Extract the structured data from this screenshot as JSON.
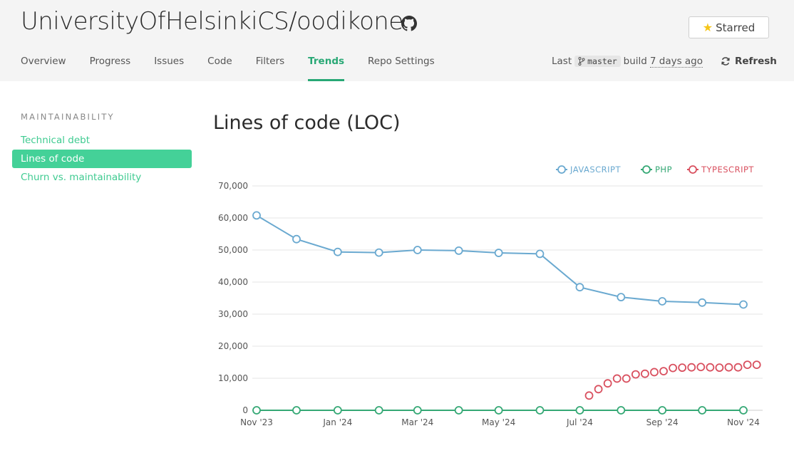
{
  "header": {
    "repo_title": "UniversityOfHelsinkiCS/oodikone",
    "github_icon": "github-icon",
    "star_button": {
      "label": "Starred",
      "icon": "star-icon"
    }
  },
  "nav": {
    "tabs": [
      {
        "label": "Overview"
      },
      {
        "label": "Progress"
      },
      {
        "label": "Issues"
      },
      {
        "label": "Code"
      },
      {
        "label": "Filters"
      },
      {
        "label": "Trends",
        "active": true
      },
      {
        "label": "Repo Settings"
      }
    ]
  },
  "build_info": {
    "prefix": "Last",
    "branch": "master",
    "middle": "build",
    "ago": "7 days ago",
    "branch_icon": "git-branch-icon"
  },
  "refresh": {
    "label": "Refresh",
    "icon": "refresh-icon"
  },
  "sidebar": {
    "heading": "MAINTAINABILITY",
    "items": [
      {
        "label": "Technical debt"
      },
      {
        "label": "Lines of code",
        "active": true
      },
      {
        "label": "Churn vs. maintainability"
      }
    ]
  },
  "main": {
    "title": "Lines of code (LOC)"
  },
  "colors": {
    "accent": "#28a875",
    "javascript": "#6aa9d0",
    "php": "#35a875",
    "typescript": "#d9505f"
  },
  "chart_data": {
    "type": "line",
    "title": "",
    "xlabel": "",
    "ylabel": "",
    "ylim": [
      0,
      70000
    ],
    "yticks": [
      "0",
      "10,000",
      "20,000",
      "30,000",
      "40,000",
      "50,000",
      "60,000",
      "70,000"
    ],
    "xticks": [
      {
        "label": "Nov '23",
        "date": "2023-11-01"
      },
      {
        "label": "Jan '24",
        "date": "2024-01-01"
      },
      {
        "label": "Mar '24",
        "date": "2024-03-01"
      },
      {
        "label": "May '24",
        "date": "2024-05-01"
      },
      {
        "label": "Jul '24",
        "date": "2024-07-01"
      },
      {
        "label": "Sep '24",
        "date": "2024-09-01"
      },
      {
        "label": "Nov '24",
        "date": "2024-11-01"
      }
    ],
    "legend_position": "top-right",
    "grid": true,
    "series": [
      {
        "name": "JAVASCRIPT",
        "color": "#6aa9d0",
        "points": [
          {
            "x": "2023-11-01",
            "y": 60800
          },
          {
            "x": "2023-12-01",
            "y": 53400
          },
          {
            "x": "2024-01-01",
            "y": 49400
          },
          {
            "x": "2024-02-01",
            "y": 49200
          },
          {
            "x": "2024-03-01",
            "y": 50000
          },
          {
            "x": "2024-04-01",
            "y": 49800
          },
          {
            "x": "2024-05-01",
            "y": 49100
          },
          {
            "x": "2024-06-01",
            "y": 48800
          },
          {
            "x": "2024-07-01",
            "y": 38400
          },
          {
            "x": "2024-08-01",
            "y": 35300
          },
          {
            "x": "2024-09-01",
            "y": 34000
          },
          {
            "x": "2024-10-01",
            "y": 33600
          },
          {
            "x": "2024-11-01",
            "y": 33000
          }
        ]
      },
      {
        "name": "PHP",
        "color": "#35a875",
        "points": [
          {
            "x": "2023-11-01",
            "y": 0
          },
          {
            "x": "2023-12-01",
            "y": 0
          },
          {
            "x": "2024-01-01",
            "y": 0
          },
          {
            "x": "2024-02-01",
            "y": 0
          },
          {
            "x": "2024-03-01",
            "y": 0
          },
          {
            "x": "2024-04-01",
            "y": 0
          },
          {
            "x": "2024-05-01",
            "y": 0
          },
          {
            "x": "2024-06-01",
            "y": 0
          },
          {
            "x": "2024-07-01",
            "y": 0
          },
          {
            "x": "2024-08-01",
            "y": 0
          },
          {
            "x": "2024-09-01",
            "y": 0
          },
          {
            "x": "2024-10-01",
            "y": 0
          },
          {
            "x": "2024-11-01",
            "y": 0
          }
        ]
      },
      {
        "name": "TYPESCRIPT",
        "color": "#d9505f",
        "points": [
          {
            "x": "2024-07-08",
            "y": 4600
          },
          {
            "x": "2024-07-15",
            "y": 6600
          },
          {
            "x": "2024-07-22",
            "y": 8400
          },
          {
            "x": "2024-07-29",
            "y": 9900
          },
          {
            "x": "2024-08-05",
            "y": 9900
          },
          {
            "x": "2024-08-12",
            "y": 11200
          },
          {
            "x": "2024-08-19",
            "y": 11400
          },
          {
            "x": "2024-08-26",
            "y": 11900
          },
          {
            "x": "2024-09-02",
            "y": 12200
          },
          {
            "x": "2024-09-09",
            "y": 13200
          },
          {
            "x": "2024-09-16",
            "y": 13300
          },
          {
            "x": "2024-09-23",
            "y": 13400
          },
          {
            "x": "2024-09-30",
            "y": 13500
          },
          {
            "x": "2024-10-07",
            "y": 13400
          },
          {
            "x": "2024-10-14",
            "y": 13300
          },
          {
            "x": "2024-10-21",
            "y": 13400
          },
          {
            "x": "2024-10-28",
            "y": 13400
          },
          {
            "x": "2024-11-04",
            "y": 14200
          },
          {
            "x": "2024-11-11",
            "y": 14200
          }
        ]
      }
    ]
  }
}
